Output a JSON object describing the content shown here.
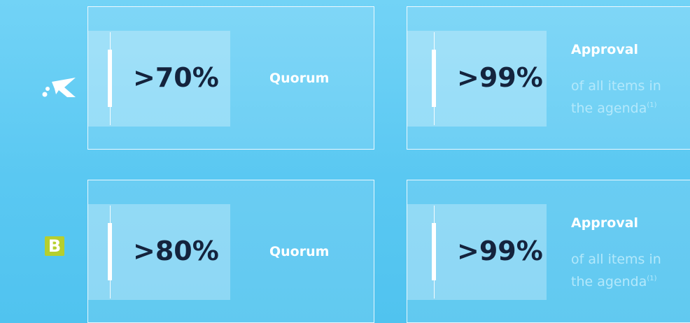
{
  "rows": [
    {
      "quorum": {
        "value": ">70%",
        "label": "Quorum"
      },
      "approval": {
        "value": ">99%",
        "title": "Approval",
        "line1": "of all items in",
        "line2": "the agenda",
        "note": "(1)"
      }
    },
    {
      "logo": "B",
      "quorum": {
        "value": ">80%",
        "label": "Quorum"
      },
      "approval": {
        "value": ">99%",
        "title": "Approval",
        "line1": "of all items in",
        "line2": "the agenda",
        "note": "(1)"
      }
    }
  ]
}
